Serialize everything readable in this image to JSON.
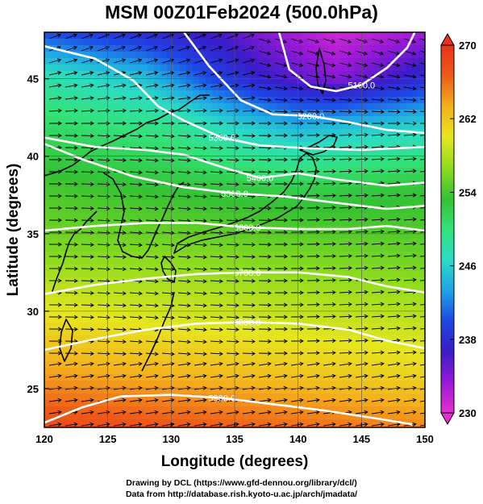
{
  "title": "MSM 00Z01Feb2024 (500.0hPa)",
  "credits": [
    "Drawing by DCL (https://www.gfd-dennou.org/library/dcl/)",
    "Data from http://database.rish.kyoto-u.ac.jp/arch/jmadata/"
  ],
  "chart_data": {
    "type": "heatmap",
    "title": "MSM 00Z01Feb2024 (500.0hPa)",
    "xlabel": "Longitude (degrees)",
    "ylabel": "Latitude  (degrees)",
    "xlim": [
      120,
      150
    ],
    "ylim": [
      22.5,
      48
    ],
    "x_ticks": [
      120,
      125,
      130,
      135,
      140,
      145,
      150
    ],
    "y_ticks": [
      25,
      30,
      35,
      40,
      45
    ],
    "colorbar": {
      "min": 230,
      "max": 270,
      "ticks": [
        230,
        238,
        246,
        254,
        262,
        270
      ],
      "colors": [
        "#e62fd0",
        "#9b18d8",
        "#3a1cc8",
        "#1e47e6",
        "#1ea4e8",
        "#2bdcc4",
        "#33e27a",
        "#34c232",
        "#8fdc1e",
        "#e6e61e",
        "#f4b11c",
        "#ee5a18",
        "#e8331a"
      ]
    },
    "contours": [
      {
        "label": "5100.0",
        "points": [
          [
            138.5,
            48
          ],
          [
            139.3,
            45.6
          ],
          [
            141,
            44.5
          ],
          [
            143,
            44.2
          ],
          [
            145,
            44.6
          ],
          [
            147,
            45.7
          ],
          [
            148.6,
            47
          ],
          [
            149.2,
            48
          ]
        ]
      },
      {
        "label": "5200.0",
        "points": [
          [
            131,
            48
          ],
          [
            133,
            45.8
          ],
          [
            135.5,
            43.6
          ],
          [
            138,
            42.7
          ],
          [
            141,
            42.6
          ],
          [
            144,
            42.2
          ],
          [
            147,
            41.7
          ],
          [
            150,
            41.5
          ]
        ]
      },
      {
        "label": "5300.0",
        "points": [
          [
            120,
            47.1
          ],
          [
            124,
            46.3
          ],
          [
            127,
            44.9
          ],
          [
            129,
            43.2
          ],
          [
            131,
            42.3
          ],
          [
            134,
            41.2
          ],
          [
            137,
            40.7
          ],
          [
            141,
            40.5
          ],
          [
            145,
            40.4
          ],
          [
            150,
            40.6
          ]
        ]
      },
      {
        "label": "5400.0",
        "points": [
          [
            120,
            41.2
          ],
          [
            124,
            40.6
          ],
          [
            128,
            40.4
          ],
          [
            131,
            40.1
          ],
          [
            134,
            39.3
          ],
          [
            137,
            38.6
          ],
          [
            140,
            38.9
          ],
          [
            143,
            38.5
          ],
          [
            147,
            38.1
          ],
          [
            150,
            38.3
          ]
        ]
      },
      {
        "label": "5500.0",
        "points": [
          [
            120,
            40.8
          ],
          [
            123,
            39.8
          ],
          [
            127,
            38.7
          ],
          [
            131,
            38
          ],
          [
            135,
            37.6
          ],
          [
            139,
            37.4
          ],
          [
            143,
            37
          ],
          [
            147,
            36.6
          ],
          [
            150,
            36.8
          ]
        ]
      },
      {
        "label": "5600.0",
        "points": [
          [
            120,
            35.2
          ],
          [
            124,
            35.5
          ],
          [
            128,
            35.7
          ],
          [
            132,
            35.7
          ],
          [
            136,
            35.4
          ],
          [
            140,
            35.3
          ],
          [
            144,
            35.3
          ],
          [
            147,
            35.5
          ],
          [
            150,
            35.2
          ]
        ]
      },
      {
        "label": "5700.0",
        "points": [
          [
            120,
            31.1
          ],
          [
            124,
            31.7
          ],
          [
            128,
            32.1
          ],
          [
            132,
            32.4
          ],
          [
            136,
            32.5
          ],
          [
            140,
            32.5
          ],
          [
            144,
            32.2
          ],
          [
            147,
            31.6
          ],
          [
            150,
            31.2
          ]
        ]
      },
      {
        "label": "5800.0",
        "points": [
          [
            120,
            27.5
          ],
          [
            124,
            28.2
          ],
          [
            128,
            28.8
          ],
          [
            132,
            29.2
          ],
          [
            136,
            29.3
          ],
          [
            140,
            29.2
          ],
          [
            144,
            28.8
          ],
          [
            147,
            28.1
          ],
          [
            150,
            27.6
          ]
        ]
      },
      {
        "label": "5900.0",
        "points": [
          [
            120,
            22.8
          ],
          [
            123,
            23.8
          ],
          [
            126,
            24.5
          ],
          [
            130,
            24.6
          ],
          [
            134,
            24.4
          ],
          [
            138,
            24
          ],
          [
            142,
            23.6
          ],
          [
            146,
            23.1
          ],
          [
            149,
            22.7
          ]
        ]
      }
    ],
    "temperature_field": [
      {
        "lat": 48,
        "lon": [
          [
            120,
            240
          ],
          [
            127,
            238
          ],
          [
            134,
            236
          ],
          [
            139,
            233
          ],
          [
            143,
            231
          ],
          [
            150,
            233
          ]
        ]
      },
      {
        "lat": 45,
        "lon": [
          [
            120,
            248
          ],
          [
            128,
            245
          ],
          [
            133,
            240
          ],
          [
            137,
            237
          ],
          [
            143,
            234
          ],
          [
            150,
            238
          ]
        ]
      },
      {
        "lat": 42,
        "lon": [
          [
            120,
            251
          ],
          [
            130,
            249
          ],
          [
            135,
            246
          ],
          [
            140,
            244
          ],
          [
            150,
            246
          ]
        ]
      },
      {
        "lat": 38,
        "lon": [
          [
            120,
            254
          ],
          [
            130,
            253
          ],
          [
            140,
            252
          ],
          [
            150,
            253
          ]
        ]
      },
      {
        "lat": 34,
        "lon": [
          [
            120,
            256
          ],
          [
            130,
            256
          ],
          [
            140,
            255.5
          ],
          [
            150,
            255
          ]
        ]
      },
      {
        "lat": 30,
        "lon": [
          [
            120,
            260
          ],
          [
            130,
            259
          ],
          [
            140,
            258.5
          ],
          [
            150,
            258
          ]
        ]
      },
      {
        "lat": 26,
        "lon": [
          [
            120,
            264
          ],
          [
            130,
            263
          ],
          [
            140,
            262
          ],
          [
            150,
            261
          ]
        ]
      },
      {
        "lat": 22.5,
        "lon": [
          [
            120,
            268
          ],
          [
            130,
            267
          ],
          [
            140,
            266
          ],
          [
            150,
            265
          ]
        ]
      }
    ],
    "wind": "eastward streamline arrows, stronger westerly flow near 30–40N",
    "grid": true
  }
}
